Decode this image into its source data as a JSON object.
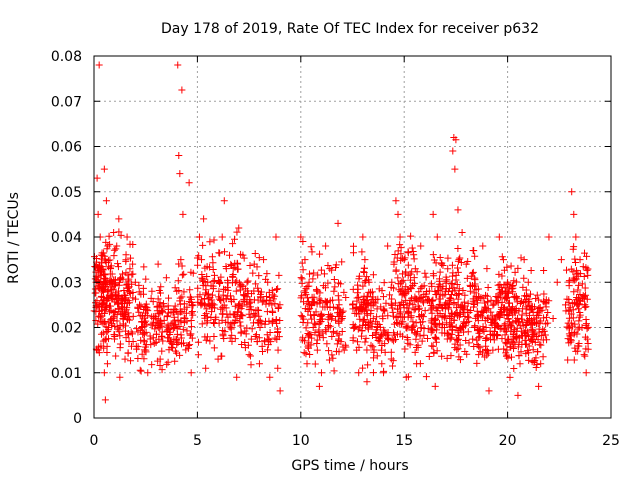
{
  "chart_data": {
    "type": "scatter",
    "title": "Day 178 of 2019, Rate Of TEC Index for receiver p632",
    "xlabel": "GPS time / hours",
    "ylabel": "ROTI / TECUs",
    "xlim": [
      0,
      25
    ],
    "ylim": [
      0,
      0.08
    ],
    "xticks": [
      "0",
      "5",
      "10",
      "15",
      "20",
      "25"
    ],
    "yticks": [
      "0",
      "0.01",
      "0.02",
      "0.03",
      "0.04",
      "0.05",
      "0.06",
      "0.07",
      "0.08"
    ],
    "grid": true,
    "marker": "+",
    "color": "#ff0000",
    "series": [
      {
        "points": [
          [
            0.25,
            0.078
          ],
          [
            0.15,
            0.053
          ],
          [
            0.2,
            0.045
          ],
          [
            0.5,
            0.055
          ],
          [
            0.6,
            0.048
          ],
          [
            0.3,
            0.04
          ],
          [
            0.1,
            0.03
          ],
          [
            0.4,
            0.025
          ],
          [
            0.7,
            0.02
          ],
          [
            0.2,
            0.015
          ],
          [
            0.5,
            0.01
          ],
          [
            0.55,
            0.004
          ],
          [
            0.8,
            0.033
          ],
          [
            0.9,
            0.027
          ],
          [
            1.0,
            0.018
          ],
          [
            1.2,
            0.044
          ],
          [
            1.1,
            0.038
          ],
          [
            1.3,
            0.031
          ],
          [
            1.4,
            0.022
          ],
          [
            1.5,
            0.013
          ],
          [
            1.6,
            0.04
          ],
          [
            1.7,
            0.029
          ],
          [
            1.8,
            0.019
          ],
          [
            0.35,
            0.036
          ],
          [
            0.65,
            0.012
          ],
          [
            1.25,
            0.009
          ],
          [
            0.45,
            0.017
          ],
          [
            0.95,
            0.041
          ],
          [
            1.55,
            0.026
          ],
          [
            2.0,
            0.03
          ],
          [
            2.2,
            0.025
          ],
          [
            2.3,
            0.02
          ],
          [
            2.5,
            0.015
          ],
          [
            2.6,
            0.01
          ],
          [
            2.8,
            0.028
          ],
          [
            3.0,
            0.022
          ],
          [
            3.1,
            0.034
          ],
          [
            3.2,
            0.013
          ],
          [
            3.5,
            0.031
          ],
          [
            3.6,
            0.024
          ],
          [
            3.7,
            0.017
          ],
          [
            3.9,
            0.02
          ],
          [
            4.05,
            0.078
          ],
          [
            4.25,
            0.0725
          ],
          [
            4.1,
            0.058
          ],
          [
            4.15,
            0.054
          ],
          [
            4.6,
            0.052
          ],
          [
            4.3,
            0.045
          ],
          [
            4.2,
            0.035
          ],
          [
            4.0,
            0.028
          ],
          [
            4.4,
            0.022
          ],
          [
            4.5,
            0.016
          ],
          [
            4.7,
            0.01
          ],
          [
            4.8,
            0.032
          ],
          [
            5.1,
            0.04
          ],
          [
            5.2,
            0.035
          ],
          [
            5.3,
            0.044
          ],
          [
            5.5,
            0.03
          ],
          [
            5.6,
            0.025
          ],
          [
            5.8,
            0.018
          ],
          [
            6.0,
            0.013
          ],
          [
            6.2,
            0.04
          ],
          [
            6.3,
            0.048
          ],
          [
            6.4,
            0.033
          ],
          [
            6.6,
            0.027
          ],
          [
            6.8,
            0.021
          ],
          [
            7.0,
            0.042
          ],
          [
            7.2,
            0.036
          ],
          [
            7.4,
            0.03
          ],
          [
            7.6,
            0.024
          ],
          [
            7.8,
            0.018
          ],
          [
            8.0,
            0.012
          ],
          [
            8.2,
            0.035
          ],
          [
            8.4,
            0.03
          ],
          [
            8.6,
            0.025
          ],
          [
            8.8,
            0.04
          ],
          [
            8.9,
            0.015
          ],
          [
            9.0,
            0.006
          ],
          [
            5.4,
            0.011
          ],
          [
            6.9,
            0.009
          ],
          [
            7.5,
            0.014
          ],
          [
            8.5,
            0.009
          ],
          [
            10.0,
            0.04
          ],
          [
            10.1,
            0.039
          ],
          [
            10.2,
            0.035
          ],
          [
            10.4,
            0.03
          ],
          [
            10.5,
            0.025
          ],
          [
            10.6,
            0.02
          ],
          [
            10.8,
            0.015
          ],
          [
            11.0,
            0.01
          ],
          [
            11.2,
            0.038
          ],
          [
            11.4,
            0.033
          ],
          [
            11.6,
            0.028
          ],
          [
            11.8,
            0.043
          ],
          [
            12.0,
            0.022
          ],
          [
            12.1,
            0.015
          ],
          [
            10.3,
            0.012
          ],
          [
            10.9,
            0.007
          ],
          [
            11.5,
            0.018
          ],
          [
            12.5,
            0.025
          ],
          [
            12.6,
            0.02
          ],
          [
            12.7,
            0.015
          ],
          [
            12.8,
            0.01
          ],
          [
            13.0,
            0.04
          ],
          [
            13.1,
            0.035
          ],
          [
            13.3,
            0.03
          ],
          [
            13.5,
            0.025
          ],
          [
            13.7,
            0.02
          ],
          [
            13.9,
            0.015
          ],
          [
            14.0,
            0.01
          ],
          [
            14.2,
            0.038
          ],
          [
            14.4,
            0.03
          ],
          [
            14.6,
            0.048
          ],
          [
            14.7,
            0.045
          ],
          [
            14.8,
            0.04
          ],
          [
            15.0,
            0.035
          ],
          [
            15.2,
            0.028
          ],
          [
            15.4,
            0.02
          ],
          [
            15.6,
            0.012
          ],
          [
            15.8,
            0.038
          ],
          [
            16.0,
            0.032
          ],
          [
            16.2,
            0.026
          ],
          [
            16.4,
            0.045
          ],
          [
            16.6,
            0.04
          ],
          [
            16.8,
            0.034
          ],
          [
            17.0,
            0.028
          ],
          [
            17.2,
            0.022
          ],
          [
            17.4,
            0.062
          ],
          [
            17.5,
            0.0615
          ],
          [
            17.35,
            0.059
          ],
          [
            17.45,
            0.055
          ],
          [
            17.6,
            0.046
          ],
          [
            17.8,
            0.041
          ],
          [
            18.0,
            0.034
          ],
          [
            18.2,
            0.028
          ],
          [
            18.4,
            0.02
          ],
          [
            18.6,
            0.014
          ],
          [
            18.8,
            0.038
          ],
          [
            19.0,
            0.033
          ],
          [
            19.2,
            0.026
          ],
          [
            19.4,
            0.02
          ],
          [
            19.6,
            0.04
          ],
          [
            19.8,
            0.035
          ],
          [
            20.0,
            0.03
          ],
          [
            20.2,
            0.024
          ],
          [
            20.4,
            0.018
          ],
          [
            20.6,
            0.012
          ],
          [
            20.8,
            0.035
          ],
          [
            21.0,
            0.03
          ],
          [
            21.2,
            0.024
          ],
          [
            21.4,
            0.018
          ],
          [
            21.6,
            0.012
          ],
          [
            22.0,
            0.04
          ],
          [
            22.2,
            0.022
          ],
          [
            22.4,
            0.03
          ],
          [
            22.6,
            0.035
          ],
          [
            22.8,
            0.025
          ],
          [
            23.0,
            0.02
          ],
          [
            23.1,
            0.05
          ],
          [
            23.2,
            0.045
          ],
          [
            23.3,
            0.04
          ],
          [
            23.4,
            0.032
          ],
          [
            23.5,
            0.026
          ],
          [
            23.6,
            0.02
          ],
          [
            23.7,
            0.014
          ],
          [
            23.8,
            0.01
          ],
          [
            13.2,
            0.008
          ],
          [
            15.1,
            0.009
          ],
          [
            16.5,
            0.007
          ],
          [
            19.1,
            0.006
          ],
          [
            20.5,
            0.005
          ],
          [
            21.5,
            0.007
          ]
        ]
      }
    ],
    "clusters": [
      [
        0.0,
        0.9,
        0.01,
        0.04,
        160
      ],
      [
        0.9,
        1.9,
        0.008,
        0.038,
        130
      ],
      [
        2.0,
        2.6,
        0.008,
        0.032,
        55
      ],
      [
        2.7,
        3.4,
        0.008,
        0.03,
        60
      ],
      [
        3.5,
        4.0,
        0.008,
        0.03,
        45
      ],
      [
        4.0,
        4.8,
        0.008,
        0.034,
        60
      ],
      [
        5.0,
        5.9,
        0.01,
        0.04,
        75
      ],
      [
        6.0,
        7.0,
        0.008,
        0.04,
        90
      ],
      [
        7.0,
        8.0,
        0.008,
        0.038,
        80
      ],
      [
        8.0,
        9.0,
        0.008,
        0.035,
        60
      ],
      [
        10.0,
        11.0,
        0.008,
        0.036,
        90
      ],
      [
        11.0,
        12.2,
        0.006,
        0.036,
        80
      ],
      [
        12.5,
        13.5,
        0.008,
        0.036,
        100
      ],
      [
        13.5,
        14.5,
        0.008,
        0.03,
        70
      ],
      [
        14.5,
        15.5,
        0.008,
        0.04,
        110
      ],
      [
        15.5,
        16.5,
        0.008,
        0.034,
        90
      ],
      [
        16.5,
        17.5,
        0.008,
        0.036,
        110
      ],
      [
        17.5,
        18.5,
        0.008,
        0.036,
        100
      ],
      [
        18.5,
        19.5,
        0.008,
        0.032,
        90
      ],
      [
        19.5,
        20.5,
        0.006,
        0.036,
        140
      ],
      [
        20.5,
        21.5,
        0.006,
        0.032,
        110
      ],
      [
        21.5,
        22.0,
        0.01,
        0.03,
        35
      ],
      [
        22.8,
        23.9,
        0.008,
        0.038,
        110
      ]
    ]
  }
}
